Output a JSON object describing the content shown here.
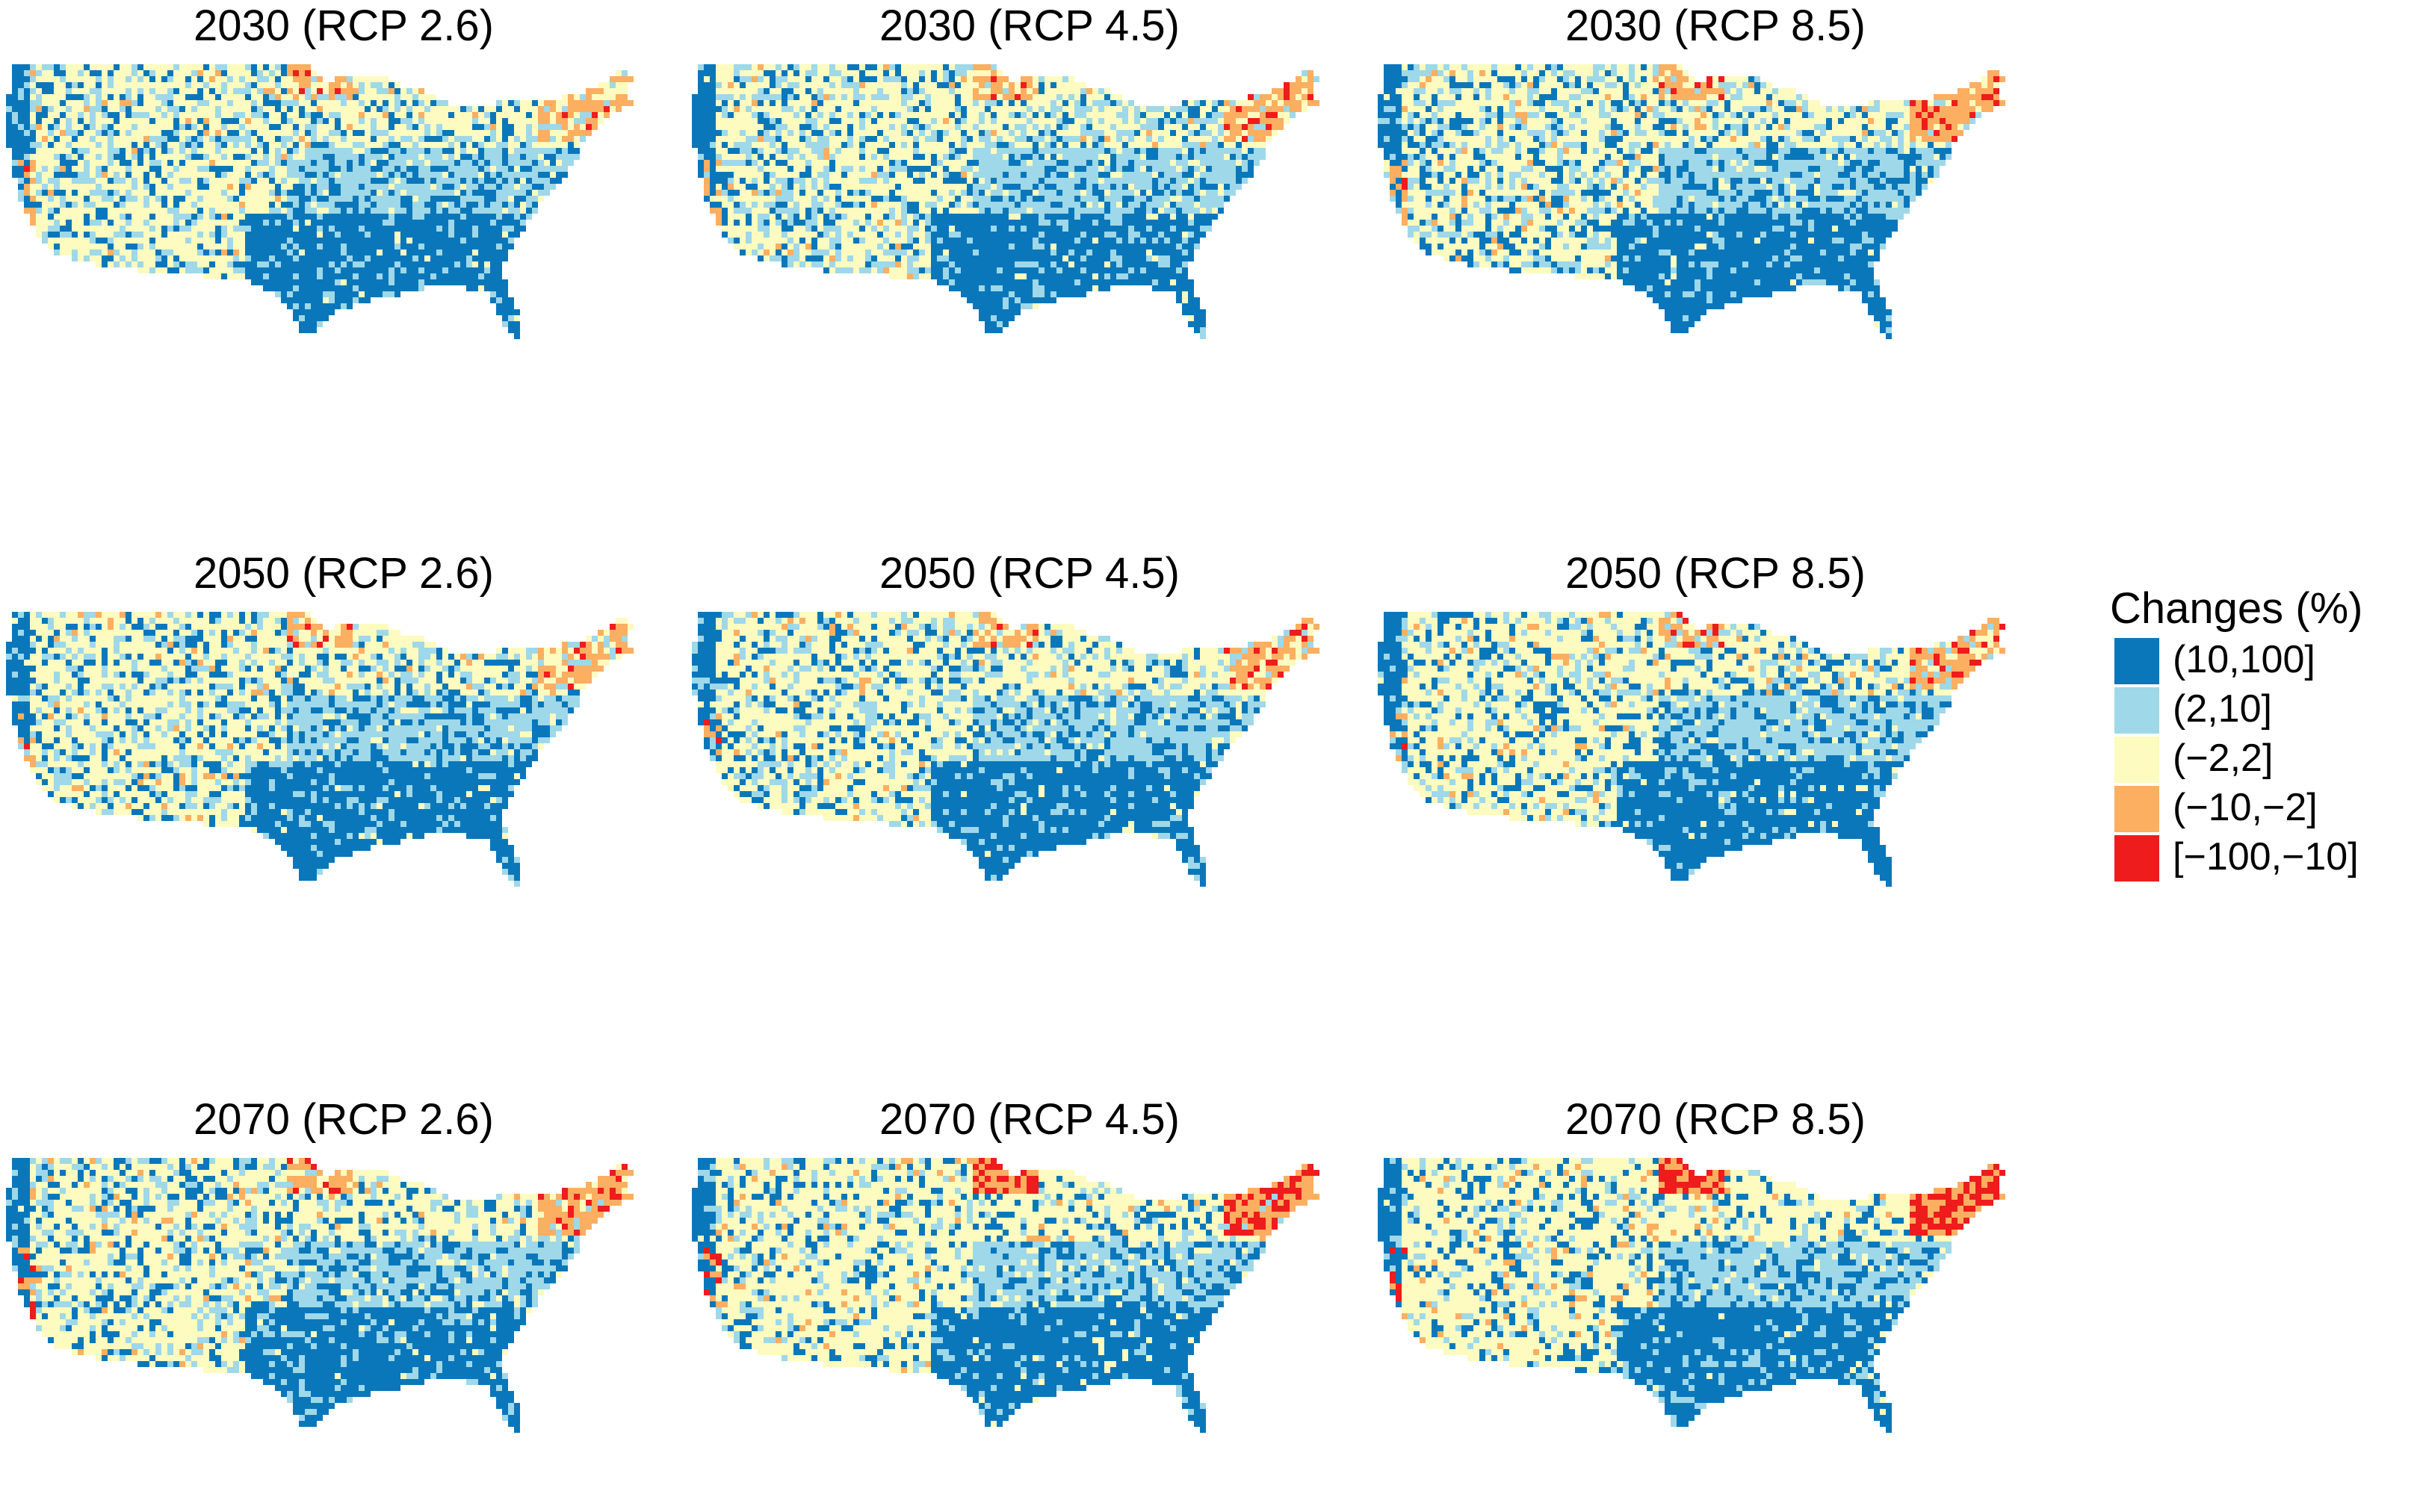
{
  "panels": [
    {
      "title": "2030 (RCP 2.6)",
      "orange": 0.05,
      "red": 0.002,
      "lightblue": 0.22
    },
    {
      "title": "2030 (RCP 4.5)",
      "orange": 0.06,
      "red": 0.004,
      "lightblue": 0.24
    },
    {
      "title": "2030 (RCP 8.5)",
      "orange": 0.07,
      "red": 0.008,
      "lightblue": 0.23
    },
    {
      "title": "2050 (RCP 2.6)",
      "orange": 0.06,
      "red": 0.004,
      "lightblue": 0.22
    },
    {
      "title": "2050 (RCP 4.5)",
      "orange": 0.06,
      "red": 0.004,
      "lightblue": 0.2
    },
    {
      "title": "2050 (RCP 8.5)",
      "orange": 0.08,
      "red": 0.008,
      "lightblue": 0.18
    },
    {
      "title": "2070 (RCP 2.6)",
      "orange": 0.07,
      "red": 0.008,
      "lightblue": 0.2
    },
    {
      "title": "2070 (RCP 4.5)",
      "orange": 0.08,
      "red": 0.015,
      "lightblue": 0.14
    },
    {
      "title": "2070 (RCP 8.5)",
      "orange": 0.1,
      "red": 0.025,
      "lightblue": 0.1
    }
  ],
  "legend": {
    "title": "Changes (%)",
    "items": [
      {
        "label": "(10,100]",
        "color": "#0a77bb"
      },
      {
        "label": "(2,10]",
        "color": "#9fd8e8"
      },
      {
        "label": "(−2,2]",
        "color": "#fdfbbf"
      },
      {
        "label": "(−10,−2]",
        "color": "#fcae61"
      },
      {
        "label": "[−100,−10]",
        "color": "#ee1c1c"
      }
    ]
  }
}
